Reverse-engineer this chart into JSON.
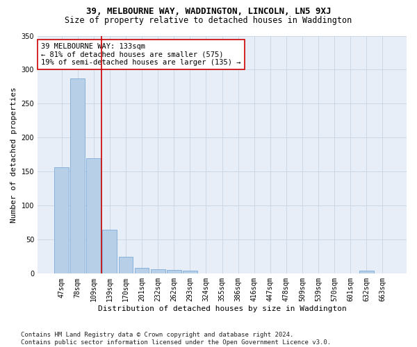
{
  "title1": "39, MELBOURNE WAY, WADDINGTON, LINCOLN, LN5 9XJ",
  "title2": "Size of property relative to detached houses in Waddington",
  "xlabel": "Distribution of detached houses by size in Waddington",
  "ylabel": "Number of detached properties",
  "categories": [
    "47sqm",
    "78sqm",
    "109sqm",
    "139sqm",
    "170sqm",
    "201sqm",
    "232sqm",
    "262sqm",
    "293sqm",
    "324sqm",
    "355sqm",
    "386sqm",
    "416sqm",
    "447sqm",
    "478sqm",
    "509sqm",
    "539sqm",
    "570sqm",
    "601sqm",
    "632sqm",
    "663sqm"
  ],
  "values": [
    157,
    287,
    170,
    65,
    25,
    9,
    6,
    5,
    4,
    0,
    0,
    0,
    0,
    0,
    0,
    0,
    0,
    0,
    0,
    4,
    0
  ],
  "bar_color": "#b8cfe8",
  "bar_edge_color": "#6b9fd4",
  "vline_color": "#cc0000",
  "annotation_text_line1": "39 MELBOURNE WAY: 133sqm",
  "annotation_text_line2": "← 81% of detached houses are smaller (575)",
  "annotation_text_line3": "19% of semi-detached houses are larger (135) →",
  "ylim": [
    0,
    350
  ],
  "yticks": [
    0,
    50,
    100,
    150,
    200,
    250,
    300,
    350
  ],
  "background_color": "#e8eef7",
  "footer_text": "Contains HM Land Registry data © Crown copyright and database right 2024.\nContains public sector information licensed under the Open Government Licence v3.0.",
  "title1_fontsize": 9,
  "title2_fontsize": 8.5,
  "xlabel_fontsize": 8,
  "ylabel_fontsize": 8,
  "tick_fontsize": 7,
  "annot_fontsize": 7.5,
  "footer_fontsize": 6.5
}
